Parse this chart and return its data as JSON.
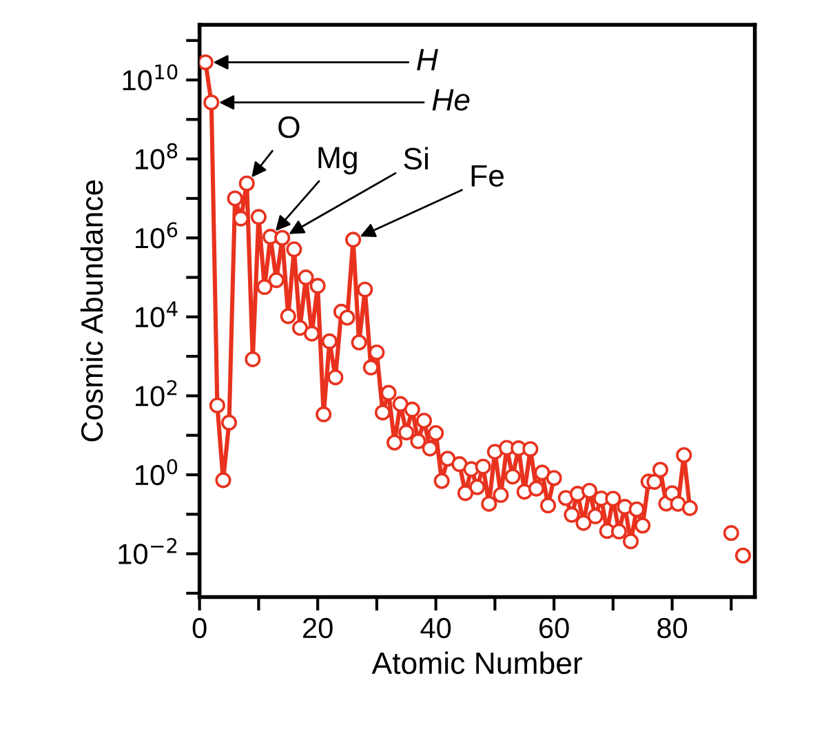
{
  "chart_data": {
    "type": "line",
    "xlabel": "Atomic Number",
    "ylabel": "Cosmic Abundance",
    "log": "y",
    "marker": "circle",
    "line_style": "solid",
    "grid": false,
    "xlim": [
      0,
      94
    ],
    "xticks": [
      0,
      {
        "value": 10,
        "label": null
      },
      20,
      {
        "value": 30,
        "label": null
      },
      40,
      {
        "value": 50,
        "label": null
      },
      60,
      {
        "value": 70,
        "label": null
      },
      80,
      {
        "value": 90,
        "label": null
      }
    ],
    "ylim": [
      0.0008,
      250000000000.0
    ],
    "yticks": [
      {
        "value": 0.001,
        "label": null
      },
      {
        "value": 0.01,
        "label": "10$^{−2}$"
      },
      {
        "value": 0.1,
        "label": null
      },
      {
        "value": 1,
        "label": "10$^{0}$"
      },
      {
        "value": 10,
        "label": null
      },
      {
        "value": 100,
        "label": "10$^{2}$"
      },
      {
        "value": 1000,
        "label": null
      },
      {
        "value": 10000,
        "label": "10$^{4}$"
      },
      {
        "value": 100000,
        "label": null
      },
      {
        "value": 1000000,
        "label": "10$^{6}$"
      },
      {
        "value": 10000000,
        "label": null
      },
      {
        "value": 100000000,
        "label": "10$^{8}$"
      },
      {
        "value": 1000000000,
        "label": null
      },
      {
        "value": 10000000000,
        "label": "10$^{10}$"
      },
      {
        "value": 100000000000,
        "label": null
      }
    ],
    "x": [
      1,
      2,
      3,
      4,
      5,
      6,
      7,
      8,
      9,
      10,
      11,
      12,
      13,
      14,
      15,
      16,
      17,
      18,
      19,
      20,
      21,
      22,
      23,
      24,
      25,
      26,
      27,
      28,
      29,
      30,
      31,
      32,
      33,
      34,
      35,
      36,
      37,
      38,
      39,
      40,
      41,
      42,
      43,
      44,
      45,
      46,
      47,
      48,
      49,
      50,
      51,
      52,
      53,
      54,
      55,
      56,
      57,
      58,
      59,
      60,
      61,
      62,
      63,
      64,
      65,
      66,
      67,
      68,
      69,
      70,
      71,
      72,
      73,
      74,
      75,
      76,
      77,
      78,
      79,
      80,
      81,
      82,
      83,
      84,
      85,
      86,
      87,
      88,
      89,
      90,
      91,
      92
    ],
    "series": [
      {
        "color": "#e8321e",
        "values": [
          28000000000.0,
          2700000000.0,
          57,
          0.73,
          21,
          10000000.0,
          3100000.0,
          24000000.0,
          843,
          3400000.0,
          57000.0,
          1070000.0,
          85000.0,
          1000000.0,
          10400.0,
          515000.0,
          5240,
          100000.0,
          3770,
          61000.0,
          34,
          2400,
          293,
          13500.0,
          9550,
          900000.0,
          2250,
          49300.0,
          522,
          1260,
          37.8,
          119,
          6.56,
          62.1,
          11.8,
          45,
          7.09,
          23.5,
          4.64,
          11.4,
          0.698,
          2.55,
          null,
          1.86,
          0.344,
          1.39,
          0.486,
          1.61,
          0.184,
          3.82,
          0.309,
          4.81,
          0.9,
          4.7,
          0.372,
          4.49,
          0.446,
          1.136,
          0.167,
          0.828,
          null,
          0.258,
          0.097,
          0.33,
          0.0603,
          0.394,
          0.0889,
          0.251,
          0.0378,
          0.248,
          0.0367,
          0.154,
          0.0207,
          0.133,
          0.0517,
          0.675,
          0.661,
          1.34,
          0.187,
          0.34,
          0.184,
          3.15,
          0.144,
          null,
          null,
          null,
          null,
          null,
          null,
          0.0335,
          null,
          0.009
        ]
      }
    ],
    "annotations": [
      {
        "text": "H",
        "x": 1,
        "y": 28000000000.0
      },
      {
        "text": "He",
        "x": 2,
        "y": 2700000000.0
      },
      {
        "text": "O",
        "x": 8,
        "y": 24000000.0
      },
      {
        "text": "Mg",
        "x": 12,
        "y": 1070000.0
      },
      {
        "text": "Si",
        "x": 14,
        "y": 1000000.0
      },
      {
        "text": "Fe",
        "x": 26,
        "y": 900000.0
      }
    ]
  }
}
